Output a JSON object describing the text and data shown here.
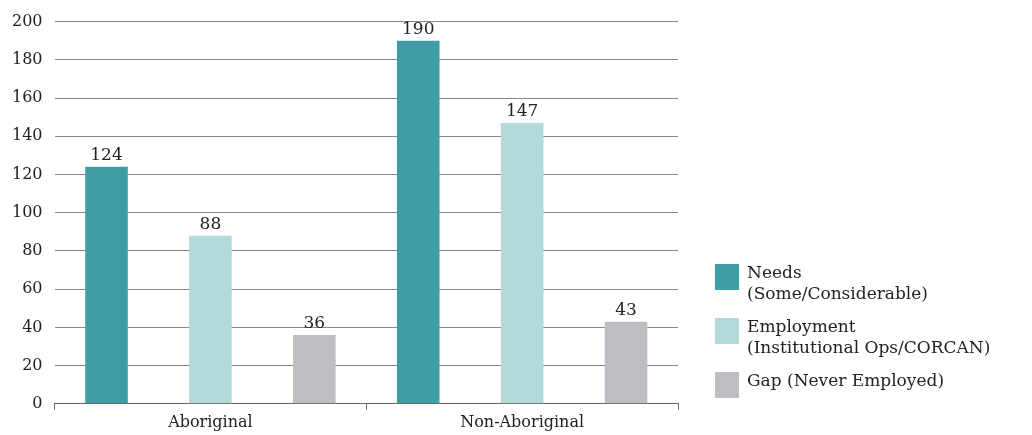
{
  "chart_data": {
    "type": "bar",
    "categories": [
      "Aboriginal",
      "Non-Aboriginal"
    ],
    "series": [
      {
        "name": "Needs\n(Some/Considerable)",
        "color": "#3f9ea5",
        "values": [
          124,
          190
        ]
      },
      {
        "name": "Employment\n(Institutional Ops/CORCAN)",
        "color": "#b3dadb",
        "values": [
          88,
          147
        ]
      },
      {
        "name": "Gap (Never Employed)",
        "color": "#bdbdc3",
        "values": [
          36,
          43
        ]
      }
    ],
    "ylim": [
      0,
      200
    ],
    "yticks": [
      0,
      20,
      40,
      60,
      80,
      100,
      120,
      140,
      160,
      180,
      200
    ],
    "grid": "y",
    "data_labels": true,
    "legend": "right"
  }
}
